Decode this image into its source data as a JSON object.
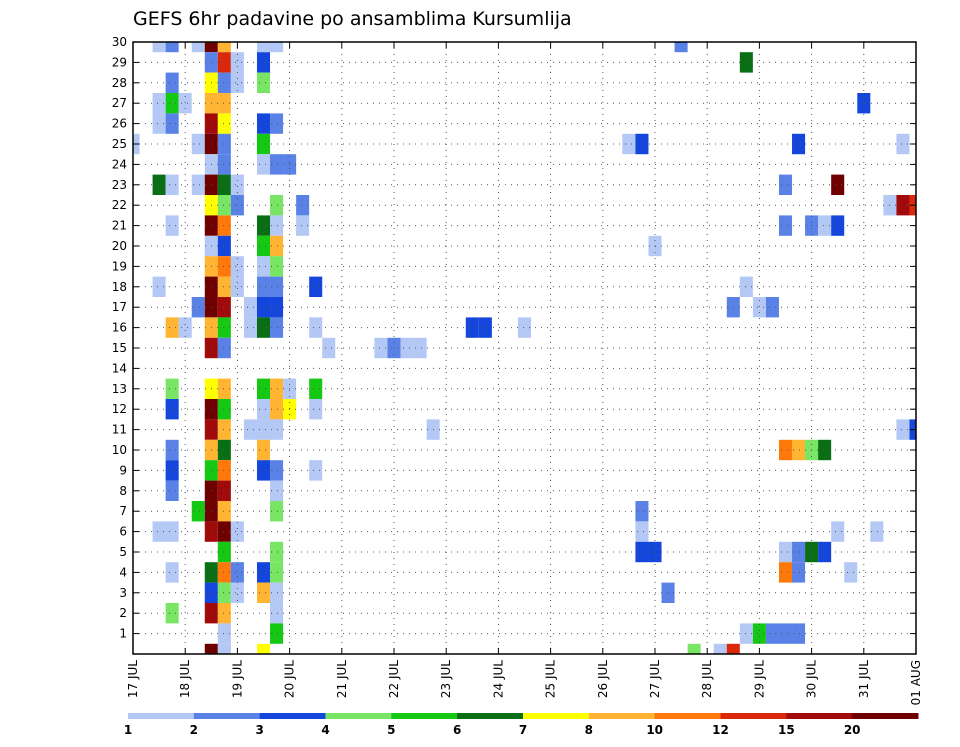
{
  "chart_data": {
    "type": "heatmap",
    "title": "GEFS 6hr padavine po ansamblima Kursumlija",
    "x_tick_labels": [
      "17 JUL",
      "18 JUL",
      "19 JUL",
      "20 JUL",
      "21 JUL",
      "22 JUL",
      "23 JUL",
      "24 JUL",
      "25 JUL",
      "26 JUL",
      "27 JUL",
      "28 JUL",
      "29 JUL",
      "30 JUL",
      "31 JUL",
      "01 AUG"
    ],
    "y_tick_labels": [
      "1",
      "2",
      "3",
      "4",
      "5",
      "6",
      "7",
      "8",
      "9",
      "10",
      "11",
      "12",
      "13",
      "14",
      "15",
      "16",
      "17",
      "18",
      "19",
      "20",
      "21",
      "22",
      "23",
      "24",
      "25",
      "26",
      "27",
      "28",
      "29",
      "30"
    ],
    "xlim_days": [
      0,
      15
    ],
    "ylim_members": [
      0,
      30
    ],
    "grid": true,
    "colorbar": {
      "labels": [
        "1",
        "2",
        "3",
        "4",
        "5",
        "6",
        "7",
        "8",
        "10",
        "12",
        "15",
        "20"
      ],
      "colors": [
        "#b4c8f5",
        "#5a82e6",
        "#1446dc",
        "#78e664",
        "#14c814",
        "#0a6e14",
        "#ffff00",
        "#ffb432",
        "#ff780a",
        "#dc280a",
        "#a00a0a",
        "#6e0000"
      ]
    },
    "cells_note": "x = day offset from 17 JUL (0.25 per 6 h step), y = ensemble member, c = colour class 1..12",
    "cells": [
      {
        "x": 0.5,
        "y": 30,
        "c": 1
      },
      {
        "x": 0.75,
        "y": 30,
        "c": 2
      },
      {
        "x": 1.25,
        "y": 30,
        "c": 1
      },
      {
        "x": 1.5,
        "y": 30,
        "c": 12
      },
      {
        "x": 1.75,
        "y": 30,
        "c": 8
      },
      {
        "x": 2.5,
        "y": 30,
        "c": 1
      },
      {
        "x": 2.75,
        "y": 30,
        "c": 1
      },
      {
        "x": 10.5,
        "y": 30,
        "c": 2
      },
      {
        "x": 1.5,
        "y": 29,
        "c": 2
      },
      {
        "x": 1.75,
        "y": 29,
        "c": 10
      },
      {
        "x": 2.0,
        "y": 29,
        "c": 1
      },
      {
        "x": 2.5,
        "y": 29,
        "c": 3
      },
      {
        "x": 11.75,
        "y": 29,
        "c": 6
      },
      {
        "x": 0.75,
        "y": 28,
        "c": 2
      },
      {
        "x": 1.5,
        "y": 28,
        "c": 7
      },
      {
        "x": 1.75,
        "y": 28,
        "c": 2
      },
      {
        "x": 2.0,
        "y": 28,
        "c": 1
      },
      {
        "x": 2.5,
        "y": 28,
        "c": 4
      },
      {
        "x": 0.5,
        "y": 27,
        "c": 1
      },
      {
        "x": 0.75,
        "y": 27,
        "c": 5
      },
      {
        "x": 1.0,
        "y": 27,
        "c": 1
      },
      {
        "x": 1.5,
        "y": 27,
        "c": 8
      },
      {
        "x": 1.75,
        "y": 27,
        "c": 8
      },
      {
        "x": 14.0,
        "y": 27,
        "c": 3
      },
      {
        "x": 0.5,
        "y": 26,
        "c": 1
      },
      {
        "x": 0.75,
        "y": 26,
        "c": 2
      },
      {
        "x": 1.5,
        "y": 26,
        "c": 11
      },
      {
        "x": 1.75,
        "y": 26,
        "c": 7
      },
      {
        "x": 2.5,
        "y": 26,
        "c": 3
      },
      {
        "x": 2.75,
        "y": 26,
        "c": 2
      },
      {
        "x": 0.0,
        "y": 25,
        "c": 1
      },
      {
        "x": 1.25,
        "y": 25,
        "c": 1
      },
      {
        "x": 1.5,
        "y": 25,
        "c": 12
      },
      {
        "x": 1.75,
        "y": 25,
        "c": 2
      },
      {
        "x": 2.5,
        "y": 25,
        "c": 5
      },
      {
        "x": 9.5,
        "y": 25,
        "c": 1
      },
      {
        "x": 9.75,
        "y": 25,
        "c": 3
      },
      {
        "x": 12.75,
        "y": 25,
        "c": 3
      },
      {
        "x": 14.75,
        "y": 25,
        "c": 1
      },
      {
        "x": 1.5,
        "y": 24,
        "c": 1
      },
      {
        "x": 1.75,
        "y": 24,
        "c": 2
      },
      {
        "x": 2.5,
        "y": 24,
        "c": 1
      },
      {
        "x": 2.75,
        "y": 24,
        "c": 2
      },
      {
        "x": 3.0,
        "y": 24,
        "c": 2
      },
      {
        "x": 0.5,
        "y": 23,
        "c": 6
      },
      {
        "x": 0.75,
        "y": 23,
        "c": 1
      },
      {
        "x": 1.25,
        "y": 23,
        "c": 1
      },
      {
        "x": 1.5,
        "y": 23,
        "c": 12
      },
      {
        "x": 1.75,
        "y": 23,
        "c": 6
      },
      {
        "x": 2.0,
        "y": 23,
        "c": 1
      },
      {
        "x": 12.5,
        "y": 23,
        "c": 2
      },
      {
        "x": 13.5,
        "y": 23,
        "c": 12
      },
      {
        "x": 1.5,
        "y": 22,
        "c": 7
      },
      {
        "x": 1.75,
        "y": 22,
        "c": 4
      },
      {
        "x": 2.0,
        "y": 22,
        "c": 2
      },
      {
        "x": 2.75,
        "y": 22,
        "c": 4
      },
      {
        "x": 3.25,
        "y": 22,
        "c": 2
      },
      {
        "x": 14.5,
        "y": 22,
        "c": 1
      },
      {
        "x": 14.75,
        "y": 22,
        "c": 11
      },
      {
        "x": 15.0,
        "y": 22,
        "c": 10
      },
      {
        "x": 0.75,
        "y": 21,
        "c": 1
      },
      {
        "x": 1.5,
        "y": 21,
        "c": 12
      },
      {
        "x": 1.75,
        "y": 21,
        "c": 9
      },
      {
        "x": 2.5,
        "y": 21,
        "c": 6
      },
      {
        "x": 2.75,
        "y": 21,
        "c": 1
      },
      {
        "x": 3.25,
        "y": 21,
        "c": 1
      },
      {
        "x": 12.5,
        "y": 21,
        "c": 2
      },
      {
        "x": 13.0,
        "y": 21,
        "c": 2
      },
      {
        "x": 13.25,
        "y": 21,
        "c": 1
      },
      {
        "x": 13.5,
        "y": 21,
        "c": 3
      },
      {
        "x": 1.5,
        "y": 20,
        "c": 1
      },
      {
        "x": 1.75,
        "y": 20,
        "c": 3
      },
      {
        "x": 2.5,
        "y": 20,
        "c": 5
      },
      {
        "x": 2.75,
        "y": 20,
        "c": 8
      },
      {
        "x": 10.0,
        "y": 20,
        "c": 1
      },
      {
        "x": 1.5,
        "y": 19,
        "c": 8
      },
      {
        "x": 1.75,
        "y": 19,
        "c": 9
      },
      {
        "x": 2.0,
        "y": 19,
        "c": 1
      },
      {
        "x": 2.5,
        "y": 19,
        "c": 1
      },
      {
        "x": 2.75,
        "y": 19,
        "c": 4
      },
      {
        "x": 0.5,
        "y": 18,
        "c": 1
      },
      {
        "x": 1.5,
        "y": 18,
        "c": 12
      },
      {
        "x": 1.75,
        "y": 18,
        "c": 8
      },
      {
        "x": 2.0,
        "y": 18,
        "c": 1
      },
      {
        "x": 2.5,
        "y": 18,
        "c": 2
      },
      {
        "x": 2.75,
        "y": 18,
        "c": 2
      },
      {
        "x": 3.5,
        "y": 18,
        "c": 3
      },
      {
        "x": 11.75,
        "y": 18,
        "c": 1
      },
      {
        "x": 1.25,
        "y": 17,
        "c": 2
      },
      {
        "x": 1.5,
        "y": 17,
        "c": 12
      },
      {
        "x": 1.75,
        "y": 17,
        "c": 11
      },
      {
        "x": 2.25,
        "y": 17,
        "c": 1
      },
      {
        "x": 2.5,
        "y": 17,
        "c": 3
      },
      {
        "x": 2.75,
        "y": 17,
        "c": 3
      },
      {
        "x": 11.5,
        "y": 17,
        "c": 2
      },
      {
        "x": 12.0,
        "y": 17,
        "c": 1
      },
      {
        "x": 12.25,
        "y": 17,
        "c": 2
      },
      {
        "x": 0.75,
        "y": 16,
        "c": 8
      },
      {
        "x": 1.0,
        "y": 16,
        "c": 1
      },
      {
        "x": 1.5,
        "y": 16,
        "c": 8
      },
      {
        "x": 1.75,
        "y": 16,
        "c": 5
      },
      {
        "x": 2.25,
        "y": 16,
        "c": 1
      },
      {
        "x": 2.5,
        "y": 16,
        "c": 6
      },
      {
        "x": 2.75,
        "y": 16,
        "c": 2
      },
      {
        "x": 3.5,
        "y": 16,
        "c": 1
      },
      {
        "x": 6.5,
        "y": 16,
        "c": 3
      },
      {
        "x": 6.75,
        "y": 16,
        "c": 3
      },
      {
        "x": 7.5,
        "y": 16,
        "c": 1
      },
      {
        "x": 1.5,
        "y": 15,
        "c": 11
      },
      {
        "x": 1.75,
        "y": 15,
        "c": 2
      },
      {
        "x": 3.75,
        "y": 15,
        "c": 1
      },
      {
        "x": 4.75,
        "y": 15,
        "c": 1
      },
      {
        "x": 5.0,
        "y": 15,
        "c": 2
      },
      {
        "x": 5.25,
        "y": 15,
        "c": 1
      },
      {
        "x": 5.5,
        "y": 15,
        "c": 1
      },
      {
        "x": 0.75,
        "y": 13,
        "c": 4
      },
      {
        "x": 1.5,
        "y": 13,
        "c": 7
      },
      {
        "x": 1.75,
        "y": 13,
        "c": 8
      },
      {
        "x": 2.5,
        "y": 13,
        "c": 5
      },
      {
        "x": 2.75,
        "y": 13,
        "c": 8
      },
      {
        "x": 3.0,
        "y": 13,
        "c": 1
      },
      {
        "x": 3.5,
        "y": 13,
        "c": 5
      },
      {
        "x": 0.75,
        "y": 12,
        "c": 3
      },
      {
        "x": 1.5,
        "y": 12,
        "c": 12
      },
      {
        "x": 1.75,
        "y": 12,
        "c": 5
      },
      {
        "x": 2.5,
        "y": 12,
        "c": 1
      },
      {
        "x": 2.75,
        "y": 12,
        "c": 8
      },
      {
        "x": 3.0,
        "y": 12,
        "c": 7
      },
      {
        "x": 3.5,
        "y": 12,
        "c": 1
      },
      {
        "x": 1.5,
        "y": 11,
        "c": 11
      },
      {
        "x": 1.75,
        "y": 11,
        "c": 8
      },
      {
        "x": 2.25,
        "y": 11,
        "c": 1
      },
      {
        "x": 2.5,
        "y": 11,
        "c": 1
      },
      {
        "x": 2.75,
        "y": 11,
        "c": 1
      },
      {
        "x": 5.75,
        "y": 11,
        "c": 1
      },
      {
        "x": 14.75,
        "y": 11,
        "c": 1
      },
      {
        "x": 15.0,
        "y": 11,
        "c": 3
      },
      {
        "x": 0.75,
        "y": 10,
        "c": 2
      },
      {
        "x": 1.5,
        "y": 10,
        "c": 8
      },
      {
        "x": 1.75,
        "y": 10,
        "c": 6
      },
      {
        "x": 2.5,
        "y": 10,
        "c": 8
      },
      {
        "x": 12.5,
        "y": 10,
        "c": 9
      },
      {
        "x": 12.75,
        "y": 10,
        "c": 8
      },
      {
        "x": 13.0,
        "y": 10,
        "c": 4
      },
      {
        "x": 13.25,
        "y": 10,
        "c": 6
      },
      {
        "x": 0.75,
        "y": 9,
        "c": 3
      },
      {
        "x": 1.5,
        "y": 9,
        "c": 5
      },
      {
        "x": 1.75,
        "y": 9,
        "c": 9
      },
      {
        "x": 2.5,
        "y": 9,
        "c": 3
      },
      {
        "x": 2.75,
        "y": 9,
        "c": 2
      },
      {
        "x": 3.5,
        "y": 9,
        "c": 1
      },
      {
        "x": 0.75,
        "y": 8,
        "c": 2
      },
      {
        "x": 1.5,
        "y": 8,
        "c": 12
      },
      {
        "x": 1.75,
        "y": 8,
        "c": 11
      },
      {
        "x": 2.75,
        "y": 8,
        "c": 1
      },
      {
        "x": 1.25,
        "y": 7,
        "c": 5
      },
      {
        "x": 1.5,
        "y": 7,
        "c": 12
      },
      {
        "x": 1.75,
        "y": 7,
        "c": 8
      },
      {
        "x": 2.75,
        "y": 7,
        "c": 4
      },
      {
        "x": 9.75,
        "y": 7,
        "c": 2
      },
      {
        "x": 0.5,
        "y": 6,
        "c": 1
      },
      {
        "x": 0.75,
        "y": 6,
        "c": 1
      },
      {
        "x": 1.5,
        "y": 6,
        "c": 11
      },
      {
        "x": 1.75,
        "y": 6,
        "c": 12
      },
      {
        "x": 2.0,
        "y": 6,
        "c": 1
      },
      {
        "x": 9.75,
        "y": 6,
        "c": 1
      },
      {
        "x": 13.5,
        "y": 6,
        "c": 1
      },
      {
        "x": 14.25,
        "y": 6,
        "c": 1
      },
      {
        "x": 1.75,
        "y": 5,
        "c": 5
      },
      {
        "x": 2.75,
        "y": 5,
        "c": 4
      },
      {
        "x": 9.75,
        "y": 5,
        "c": 3
      },
      {
        "x": 10.0,
        "y": 5,
        "c": 3
      },
      {
        "x": 12.5,
        "y": 5,
        "c": 1
      },
      {
        "x": 12.75,
        "y": 5,
        "c": 2
      },
      {
        "x": 13.0,
        "y": 5,
        "c": 6
      },
      {
        "x": 13.25,
        "y": 5,
        "c": 3
      },
      {
        "x": 0.75,
        "y": 4,
        "c": 1
      },
      {
        "x": 1.5,
        "y": 4,
        "c": 6
      },
      {
        "x": 1.75,
        "y": 4,
        "c": 9
      },
      {
        "x": 2.0,
        "y": 4,
        "c": 2
      },
      {
        "x": 2.5,
        "y": 4,
        "c": 3
      },
      {
        "x": 2.75,
        "y": 4,
        "c": 4
      },
      {
        "x": 12.5,
        "y": 4,
        "c": 9
      },
      {
        "x": 12.75,
        "y": 4,
        "c": 2
      },
      {
        "x": 13.75,
        "y": 4,
        "c": 1
      },
      {
        "x": 1.5,
        "y": 3,
        "c": 3
      },
      {
        "x": 1.75,
        "y": 3,
        "c": 4
      },
      {
        "x": 2.0,
        "y": 3,
        "c": 1
      },
      {
        "x": 2.5,
        "y": 3,
        "c": 8
      },
      {
        "x": 2.75,
        "y": 3,
        "c": 1
      },
      {
        "x": 10.25,
        "y": 3,
        "c": 2
      },
      {
        "x": 0.75,
        "y": 2,
        "c": 4
      },
      {
        "x": 1.5,
        "y": 2,
        "c": 11
      },
      {
        "x": 1.75,
        "y": 2,
        "c": 8
      },
      {
        "x": 2.75,
        "y": 2,
        "c": 1
      },
      {
        "x": 1.75,
        "y": 1,
        "c": 1
      },
      {
        "x": 2.75,
        "y": 1,
        "c": 5
      },
      {
        "x": 11.75,
        "y": 1,
        "c": 1
      },
      {
        "x": 12.0,
        "y": 1,
        "c": 5
      },
      {
        "x": 12.25,
        "y": 1,
        "c": 2
      },
      {
        "x": 12.5,
        "y": 1,
        "c": 2
      },
      {
        "x": 12.75,
        "y": 1,
        "c": 2
      },
      {
        "x": 1.5,
        "y": 0,
        "c": 12
      },
      {
        "x": 1.75,
        "y": 0,
        "c": 1
      },
      {
        "x": 2.5,
        "y": 0,
        "c": 7
      },
      {
        "x": 10.75,
        "y": 0,
        "c": 4
      },
      {
        "x": 11.25,
        "y": 0,
        "c": 1
      },
      {
        "x": 11.5,
        "y": 0,
        "c": 10
      }
    ]
  }
}
